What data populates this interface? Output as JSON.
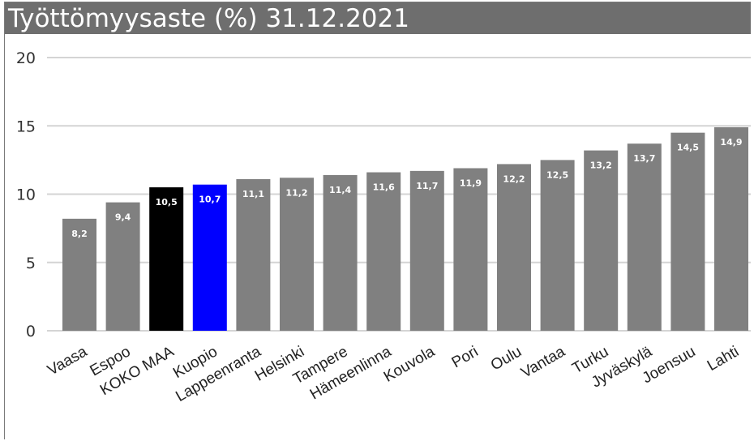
{
  "chart_data": {
    "type": "bar",
    "title": "Työttömyysaste (%) 31.12.2021",
    "xlabel": "",
    "ylabel": "",
    "ylim": [
      0,
      20
    ],
    "yticks": [
      "0",
      "5",
      "10",
      "15",
      "20"
    ],
    "grid": true,
    "categories": [
      "Vaasa",
      "Espoo",
      "KOKO MAA",
      "Kuopio",
      "Lappeenranta",
      "Helsinki",
      "Tampere",
      "Hämeenlinna",
      "Kouvola",
      "Pori",
      "Oulu",
      "Vantaa",
      "Turku",
      "Jyväskylä",
      "Joensuu",
      "Lahti"
    ],
    "values": [
      8.2,
      9.4,
      10.5,
      10.7,
      11.1,
      11.2,
      11.4,
      11.6,
      11.7,
      11.9,
      12.2,
      12.5,
      13.2,
      13.7,
      14.5,
      14.9
    ],
    "data_labels": [
      "8,2",
      "9,4",
      "10,5",
      "10,7",
      "11,1",
      "11,2",
      "11,4",
      "11,6",
      "11,7",
      "11,9",
      "12,2",
      "12,5",
      "13,2",
      "13,7",
      "14,5",
      "14,9"
    ],
    "colors": {
      "default": "#808080",
      "highlight_black": "#000000",
      "highlight_blue": "#0000ff",
      "grid": "#d4d4d4",
      "title_bar": "#6e6e6e"
    },
    "bar_colors": [
      "#808080",
      "#808080",
      "#000000",
      "#0000ff",
      "#808080",
      "#808080",
      "#808080",
      "#808080",
      "#808080",
      "#808080",
      "#808080",
      "#808080",
      "#808080",
      "#808080",
      "#808080",
      "#808080"
    ]
  }
}
